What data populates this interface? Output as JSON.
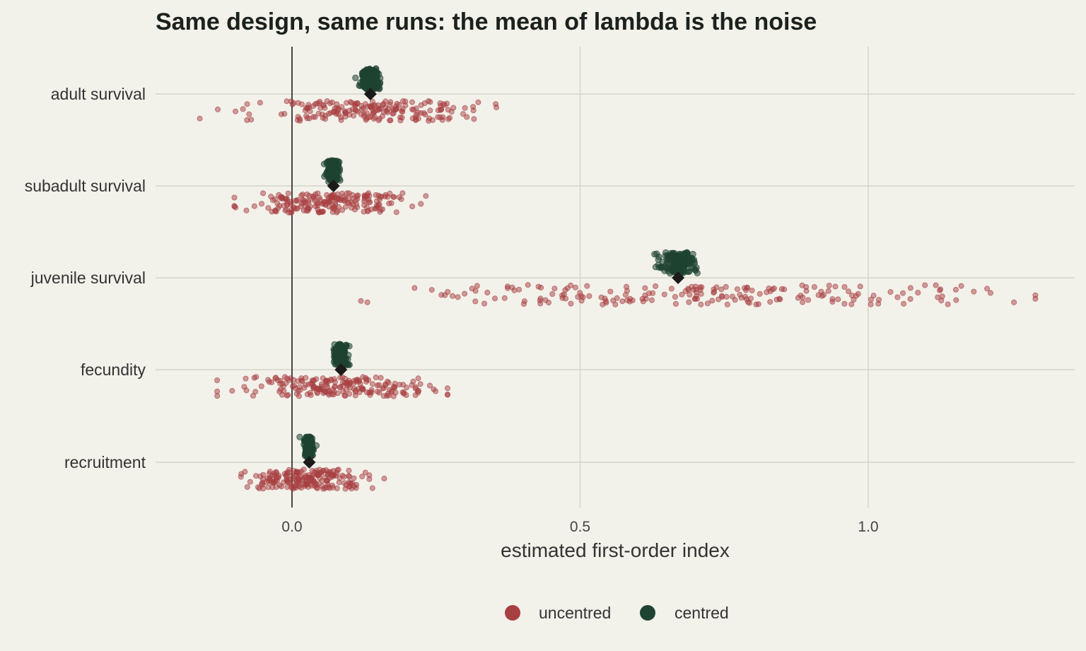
{
  "chart_data": {
    "type": "scatter",
    "title": "Same design, same runs: the mean of lambda is the noise",
    "xlabel": "estimated first-order index",
    "ylabel": "",
    "xlim": [
      -0.235,
      1.35
    ],
    "x_ticks": [
      0.0,
      0.5,
      1.0
    ],
    "x_tick_labels": [
      "0.0",
      "0.5",
      "1.0"
    ],
    "reference_line_x": 0.0,
    "grid": true,
    "legend_position": "bottom",
    "colors": {
      "uncentred": "#a83f41",
      "centred": "#1f4332",
      "true_value": "#1b1b1b",
      "background": "#f2f1ea",
      "grid": "#d6d6c8"
    },
    "categories": [
      "adult survival",
      "subadult survival",
      "juvenile survival",
      "fecundity",
      "recruitment"
    ],
    "true_values": [
      0.136,
      0.072,
      0.67,
      0.085,
      0.03
    ],
    "uncentred_summary": [
      {
        "center": 0.14,
        "sd": 0.09,
        "min": -0.16,
        "max": 0.38
      },
      {
        "center": 0.07,
        "sd": 0.07,
        "min": -0.1,
        "max": 0.28
      },
      {
        "center": 0.7,
        "sd": 0.27,
        "min": 0.05,
        "max": 1.29
      },
      {
        "center": 0.085,
        "sd": 0.08,
        "min": -0.13,
        "max": 0.27
      },
      {
        "center": 0.03,
        "sd": 0.045,
        "min": -0.12,
        "max": 0.16
      }
    ],
    "centred_summary": [
      {
        "center": 0.135,
        "sd": 0.008
      },
      {
        "center": 0.07,
        "sd": 0.005
      },
      {
        "center": 0.67,
        "sd": 0.015
      },
      {
        "center": 0.084,
        "sd": 0.006
      },
      {
        "center": 0.029,
        "sd": 0.004
      }
    ],
    "series": [
      {
        "name": "uncentred"
      },
      {
        "name": "centred"
      }
    ]
  }
}
